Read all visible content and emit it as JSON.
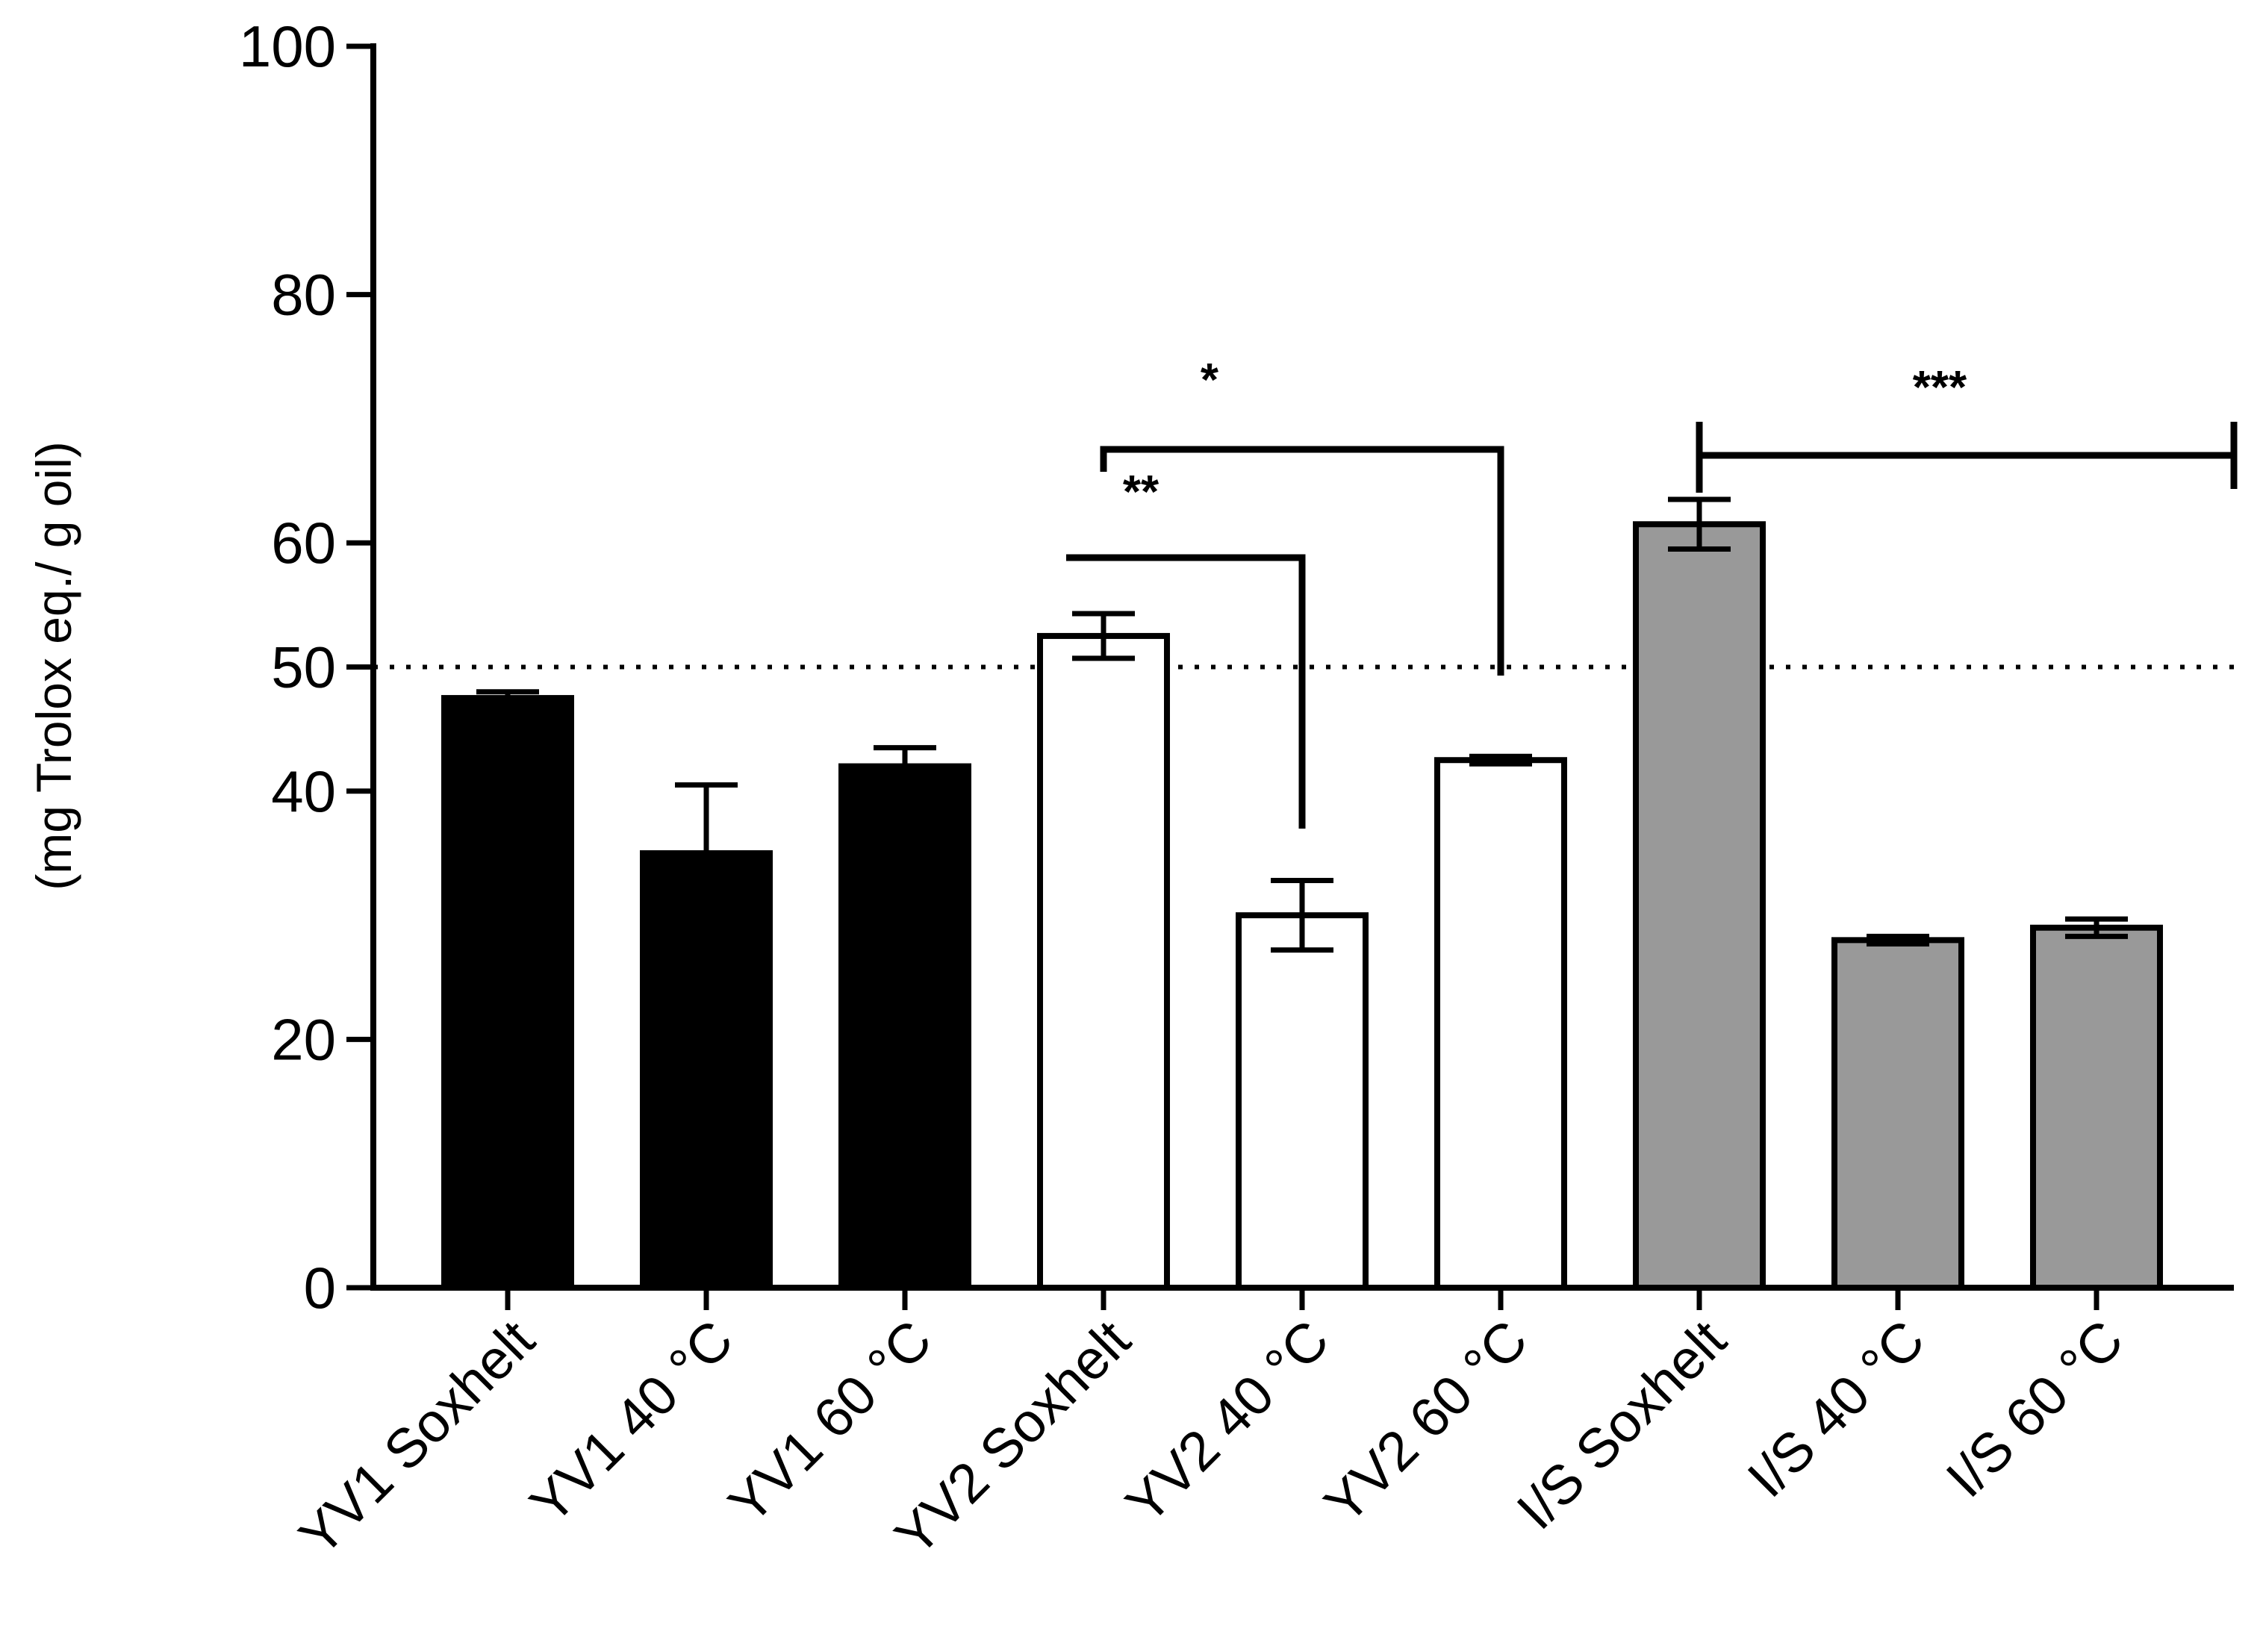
{
  "chart_data": {
    "type": "bar",
    "title": "",
    "xlabel": "",
    "ylabel": "(mg Trolox eq./ g oil)",
    "ylim": [
      0,
      100
    ],
    "yticks": [
      0,
      20,
      40,
      50,
      60,
      80,
      100
    ],
    "reference_line": {
      "value": 50,
      "style": "dotted"
    },
    "categories": [
      "YV1 Soxhelt",
      "YV1 40 °C",
      "YV1 60 °C",
      "YV2 Soxhelt",
      "YV2 40 °C",
      "YV2 60 °C",
      "I/S Soxhelt",
      "I/S 40 °C",
      "I/S 60 °C"
    ],
    "values": [
      47.5,
      35,
      42,
      52.5,
      30,
      42.5,
      61.5,
      28,
      29
    ],
    "errors": [
      0.5,
      5.5,
      1.5,
      1.8,
      2.8,
      0.3,
      2,
      0.3,
      0.7
    ],
    "groups": [
      {
        "name": "YV1",
        "fill": "#000000",
        "indices": [
          0,
          1,
          2
        ]
      },
      {
        "name": "YV2",
        "fill": "#ffffff",
        "indices": [
          3,
          4,
          5
        ]
      },
      {
        "name": "I/S",
        "fill": "#999999",
        "indices": [
          6,
          7,
          8
        ]
      }
    ],
    "significance": [
      {
        "label": "*",
        "from": 3,
        "to": 5
      },
      {
        "label": "**",
        "from": 3,
        "to": 4
      },
      {
        "label": "***",
        "from": 6,
        "to": 8
      }
    ]
  }
}
